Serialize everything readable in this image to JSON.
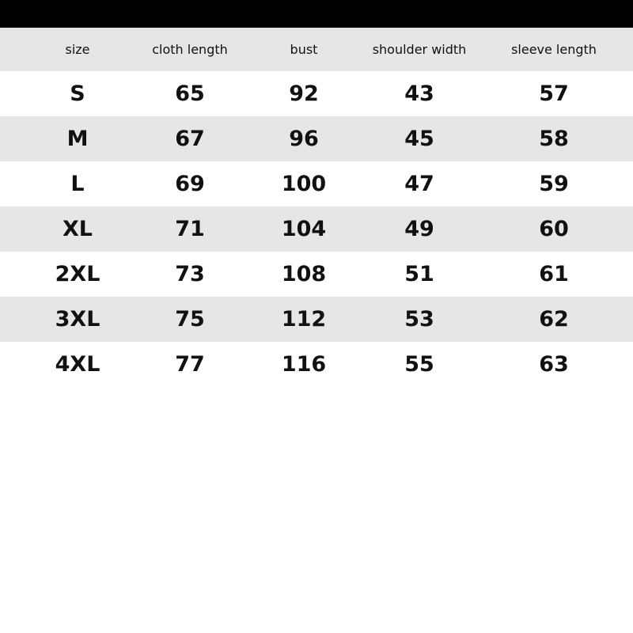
{
  "table": {
    "headers": [
      "size",
      "cloth length",
      "bust",
      "shoulder width",
      "sleeve length"
    ],
    "rows": [
      [
        "S",
        "65",
        "92",
        "43",
        "57"
      ],
      [
        "M",
        "67",
        "96",
        "45",
        "58"
      ],
      [
        "L",
        "69",
        "100",
        "47",
        "59"
      ],
      [
        "XL",
        "71",
        "104",
        "49",
        "60"
      ],
      [
        "2XL",
        "73",
        "108",
        "51",
        "61"
      ],
      [
        "3XL",
        "75",
        "112",
        "53",
        "62"
      ],
      [
        "4XL",
        "77",
        "116",
        "55",
        "63"
      ]
    ]
  },
  "colors": {
    "top_bar": "#000000",
    "stripe": "#e6e6e6",
    "background": "#ffffff"
  }
}
